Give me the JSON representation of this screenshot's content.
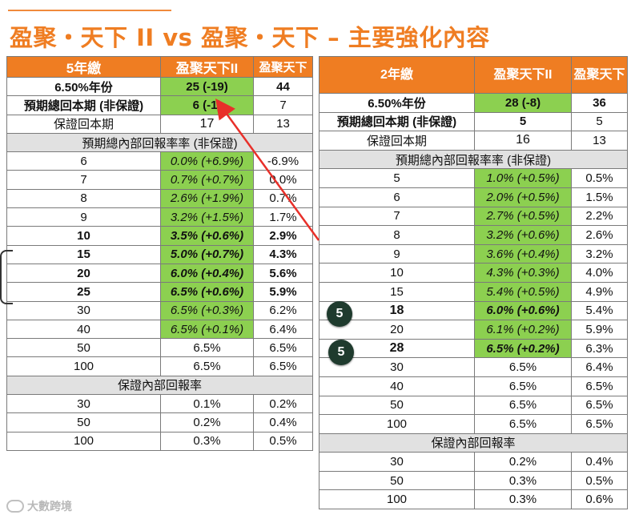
{
  "title": "盈聚・天下 II vs 盈聚・天下 – 主要強化內容",
  "accent_color": "#ef7d22",
  "highlight_color": "#8cd050",
  "left_table": {
    "headers": [
      "5年繳",
      "盈聚天下II",
      "盈聚天下"
    ],
    "top_rows": [
      {
        "label": "6.50%年份",
        "v2": "25 (-19)",
        "v1": "44"
      },
      {
        "label": "預期總回本期 (非保證)",
        "v2": "6 (-1)",
        "v1": "7"
      },
      {
        "label": "保證回本期",
        "v2": "17",
        "v1": "13"
      }
    ],
    "irr_title": "預期總內部回報率率 (非保證)",
    "irr_rows": [
      {
        "year": "6",
        "v2": "0.0% (+6.9%)",
        "v1": "-6.9%"
      },
      {
        "year": "7",
        "v2": "0.7% (+0.7%)",
        "v1": "0.0%"
      },
      {
        "year": "8",
        "v2": "2.6% (+1.9%)",
        "v1": "0.7%"
      },
      {
        "year": "9",
        "v2": "3.2% (+1.5%)",
        "v1": "1.7%"
      },
      {
        "year": "10",
        "v2": "3.5% (+0.6%)",
        "v1": "2.9%"
      },
      {
        "year": "15",
        "v2": "5.0% (+0.7%)",
        "v1": "4.3%"
      },
      {
        "year": "20",
        "v2": "6.0% (+0.4%)",
        "v1": "5.6%"
      },
      {
        "year": "25",
        "v2": "6.5% (+0.6%)",
        "v1": "5.9%"
      },
      {
        "year": "30",
        "v2": "6.5% (+0.3%)",
        "v1": "6.2%"
      },
      {
        "year": "40",
        "v2": "6.5% (+0.1%)",
        "v1": "6.4%"
      },
      {
        "year": "50",
        "v2": "6.5%",
        "v1": "6.5%"
      },
      {
        "year": "100",
        "v2": "6.5%",
        "v1": "6.5%"
      }
    ],
    "g_title": "保證內部回報率",
    "g_rows": [
      {
        "year": "30",
        "v2": "0.1%",
        "v1": "0.2%"
      },
      {
        "year": "50",
        "v2": "0.2%",
        "v1": "0.4%"
      },
      {
        "year": "100",
        "v2": "0.3%",
        "v1": "0.5%"
      }
    ]
  },
  "right_table": {
    "headers": [
      "2年繳",
      "盈聚天下II",
      "盈聚天下"
    ],
    "top_rows": [
      {
        "label": "6.50%年份",
        "v2": "28 (-8)",
        "v1": "36"
      },
      {
        "label": "預期總回本期 (非保證)",
        "v2": "5",
        "v1": "5"
      },
      {
        "label": "保證回本期",
        "v2": "16",
        "v1": "13"
      }
    ],
    "irr_title": "預期總內部回報率率 (非保證)",
    "irr_rows": [
      {
        "year": "5",
        "v2": "1.0% (+0.5%)",
        "v1": "0.5%"
      },
      {
        "year": "6",
        "v2": "2.0% (+0.5%)",
        "v1": "1.5%"
      },
      {
        "year": "7",
        "v2": "2.7% (+0.5%)",
        "v1": "2.2%"
      },
      {
        "year": "8",
        "v2": "3.2% (+0.6%)",
        "v1": "2.6%"
      },
      {
        "year": "9",
        "v2": "3.6% (+0.4%)",
        "v1": "3.2%"
      },
      {
        "year": "10",
        "v2": "4.3% (+0.3%)",
        "v1": "4.0%"
      },
      {
        "year": "15",
        "v2": "5.4% (+0.5%)",
        "v1": "4.9%"
      },
      {
        "year": "18",
        "v2": "6.0% (+0.6%)",
        "v1": "5.4%"
      },
      {
        "year": "20",
        "v2": "6.1% (+0.2%)",
        "v1": "5.9%"
      },
      {
        "year": "28",
        "v2": "6.5% (+0.2%)",
        "v1": "6.3%"
      },
      {
        "year": "30",
        "v2": "6.5%",
        "v1": "6.4%"
      },
      {
        "year": "40",
        "v2": "6.5%",
        "v1": "6.5%"
      },
      {
        "year": "50",
        "v2": "6.5%",
        "v1": "6.5%"
      },
      {
        "year": "100",
        "v2": "6.5%",
        "v1": "6.5%"
      }
    ],
    "g_title": "保證內部回報率",
    "g_rows": [
      {
        "year": "30",
        "v2": "0.2%",
        "v1": "0.4%"
      },
      {
        "year": "50",
        "v2": "0.3%",
        "v1": "0.5%"
      },
      {
        "year": "100",
        "v2": "0.3%",
        "v1": "0.6%"
      }
    ]
  },
  "badges": [
    "5",
    "5"
  ],
  "watermark": "大數跨境"
}
